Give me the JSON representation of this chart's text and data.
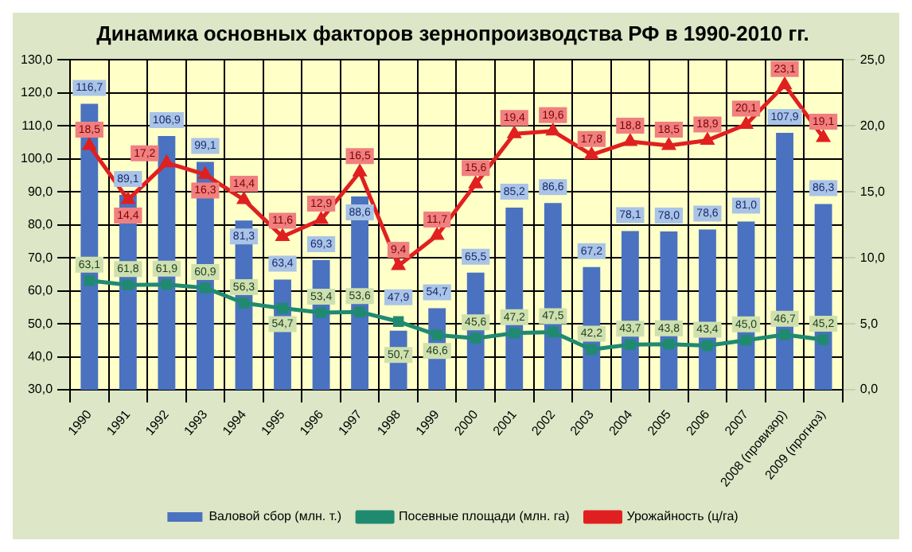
{
  "chart_data": {
    "type": "bar",
    "title": "Динамика основных факторов зернопроизводства РФ в 1990-2010 гг.",
    "categories": [
      "1990",
      "1991",
      "1992",
      "1993",
      "1994",
      "1995",
      "1996",
      "1997",
      "1998",
      "1999",
      "2000",
      "2001",
      "2002",
      "2003",
      "2004",
      "2005",
      "2006",
      "2007",
      "2008 (провизор)",
      "2009 (прогноз)"
    ],
    "series": [
      {
        "name": "Валовой сбор (млн. т.)",
        "color": "#4a72c0",
        "values": [
          116.7,
          89.1,
          106.9,
          99.1,
          81.3,
          63.4,
          69.3,
          88.6,
          47.9,
          54.7,
          65.5,
          85.2,
          86.6,
          67.2,
          78.1,
          78.0,
          78.6,
          81.0,
          107.9,
          86.3
        ],
        "value_labels": [
          "116,7",
          "89,1",
          "106,9",
          "99,1",
          "81,3",
          "63,4",
          "69,3",
          "88,6",
          "47,9",
          "54,7",
          "65,5",
          "85,2",
          "86,6",
          "67,2",
          "78,1",
          "78,0",
          "78,6",
          "81,0",
          "107,9",
          "86,3"
        ]
      },
      {
        "name": "Посевные площади (млн. га)",
        "type": "line",
        "color": "#1f8a70",
        "marker": "square",
        "values": [
          63.1,
          61.8,
          61.9,
          60.9,
          56.3,
          54.7,
          53.4,
          53.6,
          50.7,
          46.6,
          45.6,
          47.2,
          47.5,
          42.2,
          43.7,
          43.8,
          43.4,
          45.0,
          46.7,
          45.2
        ],
        "value_labels": [
          "63,1",
          "61,8",
          "61,9",
          "60,9",
          "56,3",
          "54,7",
          "53,4",
          "53,6",
          "50,7",
          "46,6",
          "45,6",
          "47,2",
          "47,5",
          "42,2",
          "43,7",
          "43,8",
          "43,4",
          "45,0",
          "46,7",
          "45,2"
        ]
      },
      {
        "name": "Урожайность (ц/га)",
        "type": "line",
        "axis": "y2",
        "color": "#e02020",
        "marker": "triangle",
        "values": [
          18.5,
          14.4,
          17.2,
          16.3,
          14.4,
          11.6,
          12.9,
          16.5,
          9.4,
          11.7,
          15.6,
          19.4,
          19.6,
          17.8,
          18.8,
          18.5,
          18.9,
          20.1,
          23.1,
          19.1
        ],
        "value_labels": [
          "18,5",
          "14,4",
          "17,2",
          "16,3",
          "14,4",
          "11,6",
          "12,9",
          "16,5",
          "9,4",
          "11,7",
          "15,6",
          "19,4",
          "19,6",
          "17,8",
          "18,8",
          "18,5",
          "18,9",
          "20,1",
          "23,1",
          "19,1"
        ]
      }
    ],
    "ylim": [
      30,
      130
    ],
    "yticks": [
      {
        "value": 30,
        "label": "30,0"
      },
      {
        "value": 40,
        "label": "40,0"
      },
      {
        "value": 50,
        "label": "50,0"
      },
      {
        "value": 60,
        "label": "60,0"
      },
      {
        "value": 70,
        "label": "70,0"
      },
      {
        "value": 80,
        "label": "80,0"
      },
      {
        "value": 90,
        "label": "90,0"
      },
      {
        "value": 100,
        "label": "100,0"
      },
      {
        "value": 110,
        "label": "110,0"
      },
      {
        "value": 120,
        "label": "120,0"
      },
      {
        "value": 130,
        "label": "130,0"
      }
    ],
    "y2lim": [
      0,
      25
    ],
    "y2ticks": [
      {
        "value": 0,
        "label": "0,0"
      },
      {
        "value": 5,
        "label": "5,0"
      },
      {
        "value": 10,
        "label": "10,0"
      },
      {
        "value": 15,
        "label": "15,0"
      },
      {
        "value": 20,
        "label": "20,0"
      },
      {
        "value": 25,
        "label": "25,0"
      }
    ],
    "grid": true,
    "legend": "bottom",
    "line_style": "solid"
  }
}
